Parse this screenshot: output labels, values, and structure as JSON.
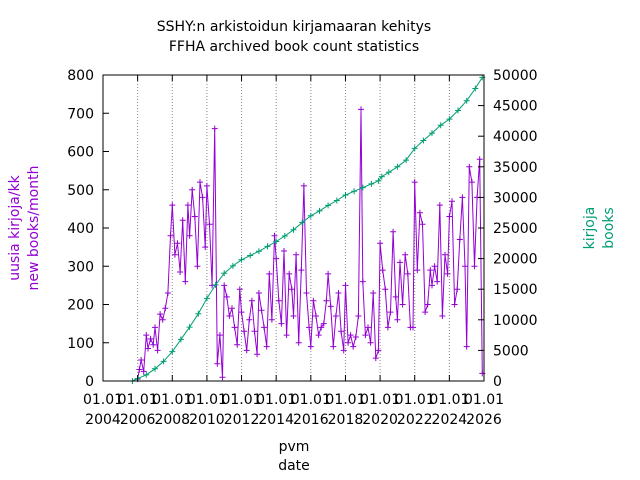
{
  "chart_data": {
    "type": "line",
    "title": [
      "SSHY:n arkistoidun kirjamaaran kehitys",
      "FFHA archived book count statistics"
    ],
    "xlabel": [
      "pvm",
      "date"
    ],
    "ylabel_left": [
      "uusia kirjoja/kk",
      "new books/month"
    ],
    "ylabel_right": [
      "kirjoja",
      "books"
    ],
    "x_ticks": [
      [
        "01.01",
        "2004"
      ],
      [
        "01.01",
        "2006"
      ],
      [
        "01.01",
        "2008"
      ],
      [
        "01.01",
        "2010"
      ],
      [
        "01.01",
        "2012"
      ],
      [
        "01.01",
        "2014"
      ],
      [
        "01.01",
        "2016"
      ],
      [
        "01.01",
        "2018"
      ],
      [
        "01.01",
        "2020"
      ],
      [
        "01.01",
        "2022"
      ],
      [
        "01.01",
        "2024"
      ],
      [
        "01.01",
        "2026"
      ]
    ],
    "xlim": [
      2004.0,
      2026.0
    ],
    "ylim_left": [
      0,
      800
    ],
    "ylim_right": [
      0,
      50000
    ],
    "y_left_ticks": [
      0,
      100,
      200,
      300,
      400,
      500,
      600,
      700,
      800
    ],
    "y_right_ticks": [
      0,
      5000,
      10000,
      15000,
      20000,
      25000,
      30000,
      35000,
      40000,
      45000,
      50000
    ],
    "grid": "vertical dotted at x ticks",
    "colors": {
      "monthly": "#9400d3",
      "cumulative": "#009e73"
    },
    "series": [
      {
        "name_lines": [
          "uusia kirjoja/kk",
          "new books/month"
        ],
        "axis": "left",
        "style": "line with + points",
        "x": [
          2006.0,
          2006.1,
          2006.2,
          2006.35,
          2006.5,
          2006.6,
          2006.75,
          2006.9,
          2007.0,
          2007.15,
          2007.3,
          2007.45,
          2007.6,
          2007.75,
          2007.9,
          2008.0,
          2008.15,
          2008.3,
          2008.45,
          2008.6,
          2008.75,
          2008.9,
          2009.0,
          2009.15,
          2009.3,
          2009.45,
          2009.6,
          2009.75,
          2009.9,
          2010.0,
          2010.15,
          2010.3,
          2010.45,
          2010.6,
          2010.75,
          2010.9,
          2011.0,
          2011.15,
          2011.3,
          2011.45,
          2011.6,
          2011.75,
          2011.9,
          2012.0,
          2012.15,
          2012.3,
          2012.45,
          2012.6,
          2012.75,
          2012.9,
          2013.0,
          2013.15,
          2013.3,
          2013.45,
          2013.6,
          2013.75,
          2013.9,
          2014.0,
          2014.15,
          2014.3,
          2014.45,
          2014.6,
          2014.75,
          2014.9,
          2015.0,
          2015.15,
          2015.3,
          2015.45,
          2015.6,
          2015.75,
          2015.9,
          2016.0,
          2016.15,
          2016.3,
          2016.45,
          2016.6,
          2016.75,
          2016.9,
          2017.0,
          2017.15,
          2017.3,
          2017.45,
          2017.6,
          2017.75,
          2017.9,
          2018.0,
          2018.15,
          2018.3,
          2018.45,
          2018.6,
          2018.75,
          2018.9,
          2019.0,
          2019.15,
          2019.3,
          2019.45,
          2019.6,
          2019.75,
          2019.9,
          2020.0,
          2020.15,
          2020.3,
          2020.45,
          2020.6,
          2020.75,
          2020.9,
          2021.0,
          2021.15,
          2021.3,
          2021.45,
          2021.6,
          2021.75,
          2021.9,
          2022.0,
          2022.15,
          2022.3,
          2022.45,
          2022.6,
          2022.75,
          2022.9,
          2023.0,
          2023.15,
          2023.3,
          2023.45,
          2023.6,
          2023.75,
          2023.9,
          2024.0,
          2024.15,
          2024.3,
          2024.45,
          2024.6,
          2024.75,
          2024.9,
          2025.0,
          2025.15,
          2025.3,
          2025.45,
          2025.6,
          2025.75,
          2025.9
        ],
        "values": [
          5,
          30,
          55,
          25,
          120,
          85,
          110,
          95,
          140,
          80,
          175,
          160,
          190,
          230,
          380,
          460,
          330,
          360,
          285,
          420,
          260,
          460,
          380,
          500,
          430,
          300,
          520,
          480,
          350,
          510,
          410,
          250,
          660,
          45,
          120,
          10,
          250,
          220,
          170,
          190,
          140,
          95,
          240,
          180,
          130,
          80,
          160,
          210,
          130,
          70,
          230,
          185,
          140,
          90,
          280,
          160,
          380,
          320,
          210,
          150,
          340,
          120,
          280,
          240,
          170,
          330,
          100,
          290,
          510,
          230,
          140,
          90,
          210,
          170,
          120,
          140,
          150,
          210,
          280,
          195,
          90,
          170,
          230,
          130,
          80,
          250,
          100,
          120,
          90,
          115,
          170,
          710,
          260,
          120,
          140,
          100,
          230,
          60,
          80,
          360,
          290,
          240,
          140,
          180,
          390,
          220,
          160,
          310,
          200,
          330,
          280,
          140,
          140,
          520,
          290,
          440,
          410,
          180,
          200,
          290,
          250,
          300,
          260,
          460,
          170,
          330,
          280,
          430,
          470,
          200,
          240,
          370,
          480,
          300,
          90,
          560,
          520,
          300,
          480,
          580,
          20
        ]
      },
      {
        "name_lines": [
          "kirjoja",
          "books"
        ],
        "axis": "right",
        "style": "line with + points",
        "x": [
          2005.7,
          2006.0,
          2006.5,
          2007.0,
          2007.5,
          2008.0,
          2008.5,
          2009.0,
          2009.5,
          2010.0,
          2010.5,
          2011.0,
          2011.5,
          2012.0,
          2012.5,
          2013.0,
          2013.5,
          2014.0,
          2014.5,
          2015.0,
          2015.5,
          2016.0,
          2016.5,
          2017.0,
          2017.5,
          2018.0,
          2018.5,
          2019.0,
          2019.5,
          2019.9,
          2020.1,
          2020.5,
          2021.0,
          2021.5,
          2022.0,
          2022.5,
          2023.0,
          2023.5,
          2024.0,
          2024.5,
          2025.0,
          2025.5,
          2025.9
        ],
        "values": [
          0,
          400,
          1000,
          2000,
          3200,
          4800,
          6800,
          8800,
          11000,
          13500,
          15700,
          17600,
          18800,
          19800,
          20500,
          21200,
          22000,
          22800,
          23700,
          24700,
          25900,
          27000,
          27800,
          28700,
          29500,
          30400,
          31000,
          31600,
          32200,
          32700,
          33400,
          34100,
          35000,
          36100,
          38000,
          39300,
          40500,
          41800,
          42800,
          44200,
          45800,
          47800,
          49600
        ]
      }
    ]
  }
}
